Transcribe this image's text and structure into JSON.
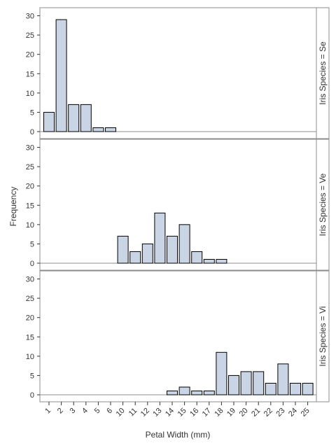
{
  "chart_data": {
    "type": "bar",
    "layout": "paneled histogram (row lattice)",
    "xlabel": "Petal Width (mm)",
    "ylabel": "Frequency",
    "categories": [
      "1",
      "2",
      "3",
      "4",
      "5",
      "6",
      "10",
      "11",
      "12",
      "13",
      "14",
      "15",
      "16",
      "17",
      "18",
      "19",
      "20",
      "21",
      "22",
      "23",
      "24",
      "25"
    ],
    "ylim": [
      0,
      31
    ],
    "yticks": [
      0,
      5,
      10,
      15,
      20,
      25,
      30
    ],
    "grid": false,
    "colors": {
      "bar_fill": "#C9D4E4",
      "bar_stroke": "#000000",
      "frame": "#8c8c8c",
      "strip_fill": "#ffffff"
    },
    "panels": [
      {
        "label": "Iris Species = Se",
        "values": [
          5,
          29,
          7,
          7,
          1,
          1,
          0,
          0,
          0,
          0,
          0,
          0,
          0,
          0,
          0,
          0,
          0,
          0,
          0,
          0,
          0,
          0
        ]
      },
      {
        "label": "Iris Species = Ve",
        "values": [
          0,
          0,
          0,
          0,
          0,
          0,
          7,
          3,
          5,
          13,
          7,
          10,
          3,
          1,
          1,
          0,
          0,
          0,
          0,
          0,
          0,
          0
        ]
      },
      {
        "label": "Iris Species = Vi",
        "values": [
          0,
          0,
          0,
          0,
          0,
          0,
          0,
          0,
          0,
          0,
          1,
          2,
          1,
          1,
          11,
          5,
          6,
          6,
          3,
          8,
          3,
          3
        ]
      }
    ]
  }
}
